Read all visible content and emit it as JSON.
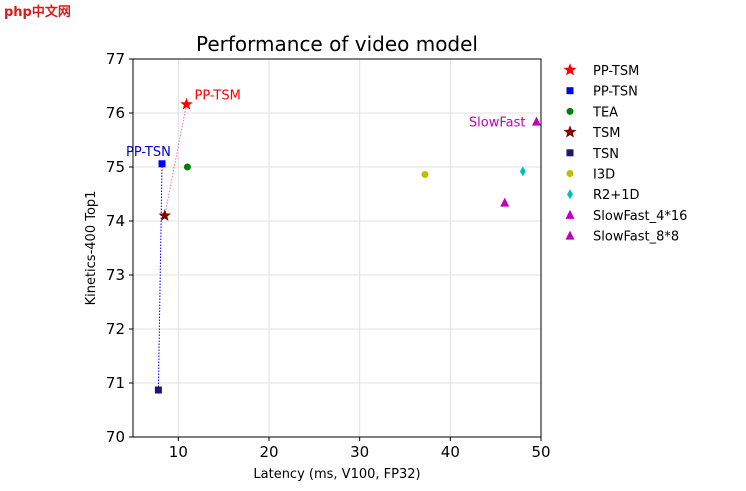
{
  "watermark": "php中文网",
  "chart_data": {
    "type": "scatter",
    "title": "Performance of video model",
    "xlabel": "Latency (ms, V100, FP32)",
    "ylabel": "Kinetics-400 Top1",
    "xlim": [
      5,
      50
    ],
    "ylim": [
      70,
      77
    ],
    "xticks": [
      10,
      20,
      30,
      40,
      50
    ],
    "yticks": [
      70,
      71,
      72,
      73,
      74,
      75,
      76,
      77
    ],
    "grid": true,
    "legend_position": "right",
    "series": [
      {
        "name": "PP-TSM",
        "marker": "star",
        "color": "#ff0000",
        "points": [
          [
            10.9,
            76.16
          ]
        ]
      },
      {
        "name": "PP-TSN",
        "marker": "square",
        "color": "#0000ff",
        "points": [
          [
            8.2,
            75.06
          ]
        ]
      },
      {
        "name": "TEA",
        "marker": "circle",
        "color": "#008000",
        "points": [
          [
            11.0,
            75.0
          ]
        ]
      },
      {
        "name": "TSM",
        "marker": "star",
        "color": "#800000",
        "points": [
          [
            8.5,
            74.1
          ]
        ]
      },
      {
        "name": "TSN",
        "marker": "square",
        "color": "#191970",
        "points": [
          [
            7.8,
            70.87
          ]
        ]
      },
      {
        "name": "I3D",
        "marker": "circle",
        "color": "#bfbf00",
        "points": [
          [
            37.2,
            74.86
          ]
        ]
      },
      {
        "name": "R2+1D",
        "marker": "diamond",
        "color": "#00bfbf",
        "points": [
          [
            48.0,
            74.92
          ]
        ]
      },
      {
        "name": "SlowFast_4*16",
        "marker": "triangle",
        "color": "#bf00bf",
        "points": [
          [
            46.0,
            74.34
          ]
        ]
      },
      {
        "name": "SlowFast_8*8",
        "marker": "triangle",
        "color": "#bf00bf",
        "points": [
          [
            49.5,
            75.84
          ]
        ]
      }
    ],
    "connectors": [
      {
        "from": "TSM",
        "to": "PP-TSM",
        "color": "#ff6fa0",
        "style": "dotted"
      },
      {
        "from": "TSN",
        "to": "PP-TSN",
        "color": "#0000ff",
        "style": "dotted"
      }
    ],
    "annotations": [
      {
        "text": "PP-TSM",
        "color": "#ff0000",
        "x": 10.9,
        "y": 76.16,
        "anchor": "right"
      },
      {
        "text": "PP-TSN",
        "color": "#0000cc",
        "x": 8.2,
        "y": 75.06,
        "anchor": "above-left"
      },
      {
        "text": "SlowFast",
        "color": "#bf00bf",
        "x": 49.5,
        "y": 75.84,
        "anchor": "left"
      }
    ]
  }
}
